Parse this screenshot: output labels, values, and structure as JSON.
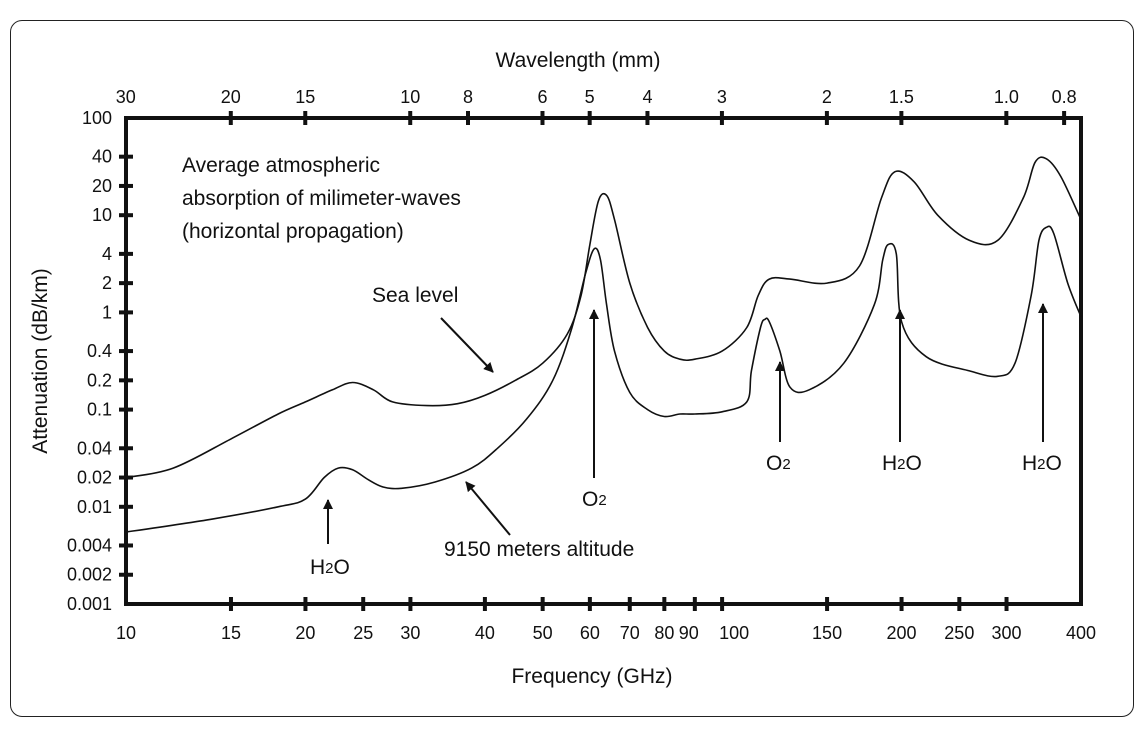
{
  "chart_data": {
    "type": "line",
    "title": "",
    "xlabel": "Frequency (GHz)",
    "ylabel": "Attenuation (dB/km)",
    "x2label": "Wavelength (mm)",
    "xscale": "log",
    "yscale": "log",
    "xlim": [
      10,
      400
    ],
    "ylim": [
      0.001,
      100
    ],
    "xticks": [
      {
        "value": 10,
        "label": "10"
      },
      {
        "value": 15,
        "label": "15"
      },
      {
        "value": 20,
        "label": "20"
      },
      {
        "value": 25,
        "label": "25"
      },
      {
        "value": 30,
        "label": "30"
      },
      {
        "value": 40,
        "label": "40"
      },
      {
        "value": 50,
        "label": "50"
      },
      {
        "value": 60,
        "label": "60"
      },
      {
        "value": 70,
        "label": "70"
      },
      {
        "value": 80,
        "label": "80"
      },
      {
        "value": 90,
        "label": "90"
      },
      {
        "value": 100,
        "label": "100"
      },
      {
        "value": 150,
        "label": "150"
      },
      {
        "value": 200,
        "label": "200"
      },
      {
        "value": 250,
        "label": "250"
      },
      {
        "value": 300,
        "label": "300"
      },
      {
        "value": 400,
        "label": "400"
      }
    ],
    "x2ticks": [
      {
        "value": 30,
        "label": "30"
      },
      {
        "value": 20,
        "label": "20"
      },
      {
        "value": 15,
        "label": "15"
      },
      {
        "value": 10,
        "label": "10"
      },
      {
        "value": 8,
        "label": "8"
      },
      {
        "value": 6,
        "label": "6"
      },
      {
        "value": 5,
        "label": "5"
      },
      {
        "value": 4,
        "label": "4"
      },
      {
        "value": 3,
        "label": "3"
      },
      {
        "value": 2,
        "label": "2"
      },
      {
        "value": 1.5,
        "label": "1.5"
      },
      {
        "value": 1.0,
        "label": "1.0"
      },
      {
        "value": 0.8,
        "label": "0.8"
      }
    ],
    "yticks": [
      {
        "value": 0.001,
        "label": "0.001"
      },
      {
        "value": 0.002,
        "label": "0.002"
      },
      {
        "value": 0.004,
        "label": "0.004"
      },
      {
        "value": 0.01,
        "label": "0.01"
      },
      {
        "value": 0.02,
        "label": "0.02"
      },
      {
        "value": 0.04,
        "label": "0.04"
      },
      {
        "value": 0.1,
        "label": "0.1"
      },
      {
        "value": 0.2,
        "label": "0.2"
      },
      {
        "value": 0.4,
        "label": "0.4"
      },
      {
        "value": 1,
        "label": "1"
      },
      {
        "value": 2,
        "label": "2"
      },
      {
        "value": 4,
        "label": "4"
      },
      {
        "value": 10,
        "label": "10"
      },
      {
        "value": 20,
        "label": "20"
      },
      {
        "value": 40,
        "label": "40"
      },
      {
        "value": 100,
        "label": "100"
      }
    ],
    "series": [
      {
        "name": "Sea level",
        "x": [
          10,
          12,
          15,
          18,
          20,
          22.2,
          24,
          26,
          28,
          32,
          36,
          40,
          45,
          50,
          55,
          58,
          60,
          62,
          64,
          66,
          70,
          75,
          80,
          85,
          90,
          100,
          110,
          115,
          120,
          130,
          150,
          170,
          185,
          195,
          210,
          230,
          260,
          290,
          320,
          335,
          350,
          370,
          400
        ],
        "y": [
          0.02,
          0.025,
          0.05,
          0.09,
          0.12,
          0.16,
          0.19,
          0.16,
          0.12,
          0.11,
          0.115,
          0.14,
          0.2,
          0.3,
          0.6,
          1.5,
          5,
          14,
          16,
          9,
          2,
          0.7,
          0.4,
          0.33,
          0.33,
          0.4,
          0.7,
          1.5,
          2.2,
          2.2,
          2.0,
          3,
          15,
          28,
          22,
          10,
          5.5,
          5.5,
          15,
          35,
          38,
          25,
          9
        ]
      },
      {
        "name": "9150 meters altitude",
        "x": [
          10,
          14,
          18,
          20,
          21.5,
          22.7,
          24,
          25.5,
          27,
          29,
          33,
          38,
          42,
          47,
          52,
          56,
          59,
          61,
          62.5,
          64,
          66,
          70,
          75,
          80,
          85,
          90,
          100,
          110,
          112,
          116,
          118,
          120,
          125,
          130,
          140,
          160,
          180,
          186,
          190,
          196,
          200,
          220,
          260,
          290,
          310,
          330,
          340,
          350,
          360,
          380,
          400
        ],
        "y": [
          0.0055,
          0.0075,
          0.01,
          0.012,
          0.02,
          0.025,
          0.024,
          0.019,
          0.016,
          0.0155,
          0.018,
          0.025,
          0.04,
          0.08,
          0.2,
          0.7,
          2.5,
          4.5,
          3.5,
          1.2,
          0.4,
          0.15,
          0.1,
          0.085,
          0.09,
          0.09,
          0.095,
          0.12,
          0.25,
          0.7,
          0.85,
          0.8,
          0.4,
          0.17,
          0.16,
          0.3,
          1.2,
          3.5,
          5.0,
          4.0,
          0.8,
          0.35,
          0.25,
          0.22,
          0.3,
          1.5,
          5.5,
          7.5,
          6.5,
          2.0,
          0.9
        ]
      }
    ],
    "annotations": {
      "description": [
        "Average atmospheric",
        "absorption of milimeter-waves",
        "(horizontal propagation)"
      ],
      "sea_level_label": "Sea level",
      "altitude_label": "9150 meters altitude",
      "peaks": [
        {
          "molecule": "H",
          "sub": "2",
          "tail": "O",
          "freq": 22.5
        },
        {
          "molecule": "O",
          "sub": "2",
          "tail": "",
          "freq": 60.5
        },
        {
          "molecule": "O",
          "sub": "2",
          "tail": "",
          "freq": 118
        },
        {
          "molecule": "H",
          "sub": "2",
          "tail": "O",
          "freq": 183
        },
        {
          "molecule": "H",
          "sub": "2",
          "tail": "O",
          "freq": 325
        }
      ]
    }
  }
}
